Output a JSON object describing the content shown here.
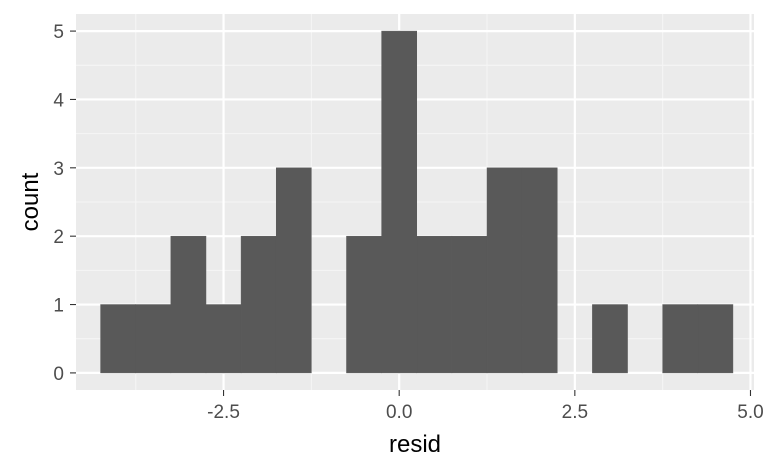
{
  "chart_data": {
    "type": "bar",
    "subtype": "histogram",
    "title": "",
    "xlabel": "resid",
    "ylabel": "count",
    "xlim": [
      -4.6,
      5.05
    ],
    "ylim": [
      -0.25,
      5.25
    ],
    "x_ticks": [
      -2.5,
      0.0,
      2.5,
      5.0
    ],
    "x_tick_labels": [
      "-2.5",
      "0.0",
      "2.5",
      "5.0"
    ],
    "y_ticks": [
      0,
      1,
      2,
      3,
      4,
      5
    ],
    "y_tick_labels": [
      "0",
      "1",
      "2",
      "3",
      "4",
      "5"
    ],
    "grid": true,
    "bin_width": 0.5,
    "bins": [
      {
        "x_min": -4.25,
        "x_max": -3.75,
        "count": 1
      },
      {
        "x_min": -3.75,
        "x_max": -3.25,
        "count": 1
      },
      {
        "x_min": -3.25,
        "x_max": -2.75,
        "count": 2
      },
      {
        "x_min": -2.75,
        "x_max": -2.25,
        "count": 1
      },
      {
        "x_min": -2.25,
        "x_max": -1.75,
        "count": 2
      },
      {
        "x_min": -1.75,
        "x_max": -1.25,
        "count": 3
      },
      {
        "x_min": -1.25,
        "x_max": -0.75,
        "count": 0
      },
      {
        "x_min": -0.75,
        "x_max": -0.25,
        "count": 2
      },
      {
        "x_min": -0.25,
        "x_max": 0.25,
        "count": 5
      },
      {
        "x_min": 0.25,
        "x_max": 0.75,
        "count": 2
      },
      {
        "x_min": 0.75,
        "x_max": 1.25,
        "count": 2
      },
      {
        "x_min": 1.25,
        "x_max": 1.75,
        "count": 3
      },
      {
        "x_min": 1.75,
        "x_max": 2.25,
        "count": 3
      },
      {
        "x_min": 2.25,
        "x_max": 2.75,
        "count": 0
      },
      {
        "x_min": 2.75,
        "x_max": 3.25,
        "count": 1
      },
      {
        "x_min": 3.25,
        "x_max": 3.75,
        "count": 0
      },
      {
        "x_min": 3.75,
        "x_max": 4.25,
        "count": 1
      },
      {
        "x_min": 4.25,
        "x_max": 4.75,
        "count": 1
      }
    ],
    "colors": {
      "panel_background": "#ebebeb",
      "grid_major": "#ffffff",
      "grid_minor": "#f5f5f5",
      "bar_fill": "#595959",
      "tick_color": "#333333"
    }
  }
}
